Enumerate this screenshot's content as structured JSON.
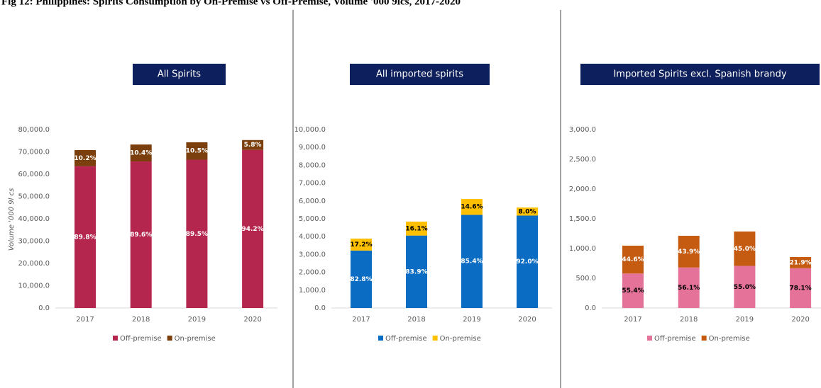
{
  "title": "Fig 12: Philippines: Spirits Consumption by On-Premise vs Off-Premise, Volume '000 9lcs, 2017-2020",
  "chart_data": [
    {
      "type": "bar",
      "stacked": true,
      "title": "All Spirits",
      "ylabel": "Volume '000 9l cs",
      "categories": [
        "2017",
        "2018",
        "2019",
        "2020"
      ],
      "series": [
        {
          "name": "Off-premise",
          "color": "#b5264f",
          "values": [
            63600,
            65700,
            66500,
            70900
          ],
          "labels": [
            "89.8%",
            "89.6%",
            "89.5%",
            "94.2%"
          ]
        },
        {
          "name": "On-premise",
          "color": "#7a3f0c",
          "values": [
            7200,
            7600,
            7800,
            4400
          ],
          "labels": [
            "10.2%",
            "10.4%",
            "10.5%",
            "5.8%"
          ]
        }
      ],
      "ylim": [
        0,
        80000
      ],
      "yticks": [
        {
          "value": 0,
          "label": "0.0"
        },
        {
          "value": 10000,
          "label": "10,000.0"
        },
        {
          "value": 20000,
          "label": "20,000.0"
        },
        {
          "value": 30000,
          "label": "30,000.0"
        },
        {
          "value": 40000,
          "label": "40,000.0"
        },
        {
          "value": 50000,
          "label": "50,000.0"
        },
        {
          "value": 60000,
          "label": "60,000.0"
        },
        {
          "value": 70000,
          "label": "70,000.0"
        },
        {
          "value": 80000,
          "label": "80,000.0"
        }
      ]
    },
    {
      "type": "bar",
      "stacked": true,
      "title": "All imported spirits",
      "categories": [
        "2017",
        "2018",
        "2019",
        "2020"
      ],
      "series": [
        {
          "name": "Off-premise",
          "color": "#0a6cc2",
          "values": [
            3220,
            4060,
            5220,
            5180
          ],
          "labels": [
            "82.8%",
            "83.9%",
            "85.4%",
            "92.0%"
          ]
        },
        {
          "name": "On-premise",
          "color": "#ffc000",
          "values": [
            670,
            780,
            890,
            450
          ],
          "labels": [
            "17.2%",
            "16.1%",
            "14.6%",
            "8.0%"
          ]
        }
      ],
      "ylim": [
        0,
        10000
      ],
      "yticks": [
        {
          "value": 0,
          "label": "0.0"
        },
        {
          "value": 1000,
          "label": "1,000.0"
        },
        {
          "value": 2000,
          "label": "2,000.0"
        },
        {
          "value": 3000,
          "label": "3,000.0"
        },
        {
          "value": 4000,
          "label": "4,000.0"
        },
        {
          "value": 5000,
          "label": "5,000.0"
        },
        {
          "value": 6000,
          "label": "6,000.0"
        },
        {
          "value": 7000,
          "label": "7,000.0"
        },
        {
          "value": 8000,
          "label": "8,000.0"
        },
        {
          "value": 9000,
          "label": "9,000.0"
        },
        {
          "value": 10000,
          "label": "10,000.0"
        }
      ]
    },
    {
      "type": "bar",
      "stacked": true,
      "title": "Imported Spirits excl. Spanish brandy",
      "categories": [
        "2017",
        "2018",
        "2019",
        "2020"
      ],
      "series": [
        {
          "name": "Off-premise",
          "color": "#e57399",
          "values": [
            580,
            681,
            707,
            669
          ],
          "labels": [
            "55.4%",
            "56.1%",
            "55.0%",
            "78.1%"
          ]
        },
        {
          "name": "On-premise",
          "color": "#c55a11",
          "values": [
            468,
            533,
            579,
            188
          ],
          "labels": [
            "44.6%",
            "43.9%",
            "45.0%",
            "21.9%"
          ]
        }
      ],
      "ylim": [
        0,
        3000
      ],
      "yticks": [
        {
          "value": 0,
          "label": "0.0"
        },
        {
          "value": 500,
          "label": "500.0"
        },
        {
          "value": 1000,
          "label": "1,000.0"
        },
        {
          "value": 1500,
          "label": "1,500.0"
        },
        {
          "value": 2000,
          "label": "2,000.0"
        },
        {
          "value": 2500,
          "label": "2,500.0"
        },
        {
          "value": 3000,
          "label": "3,000.0"
        }
      ]
    }
  ]
}
